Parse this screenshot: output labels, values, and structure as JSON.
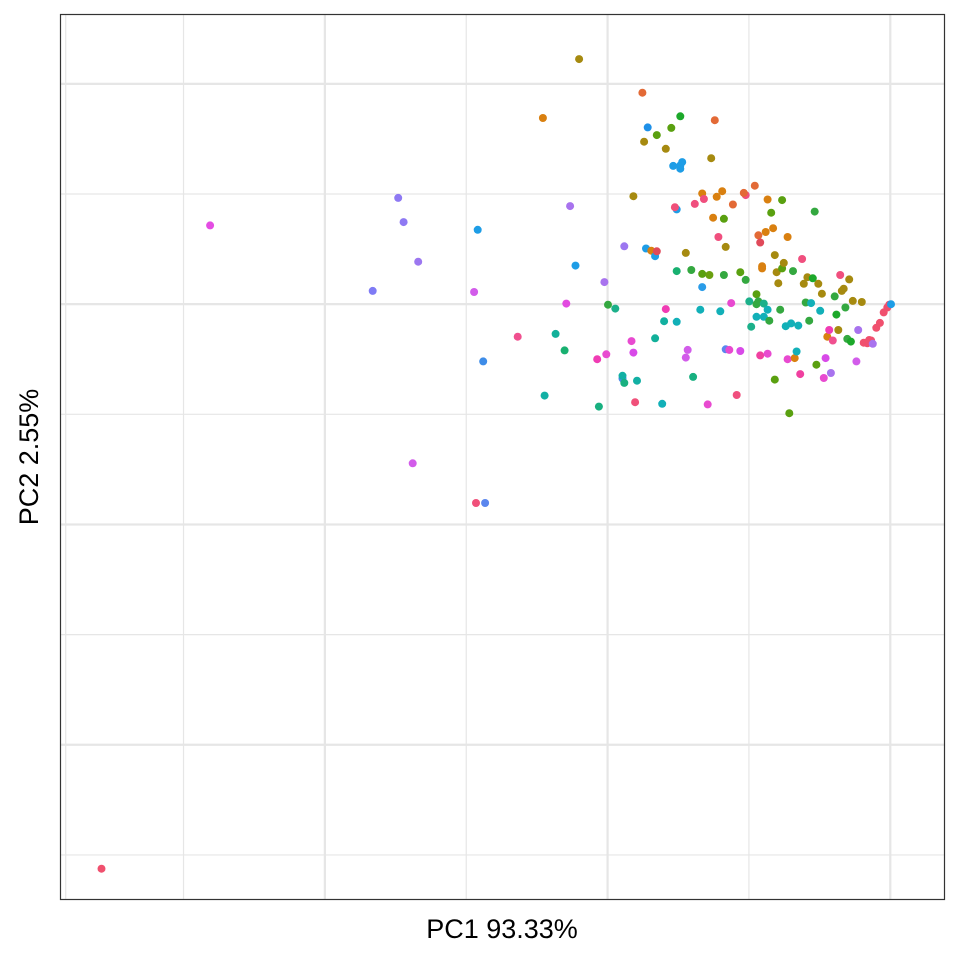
{
  "chart_data": {
    "type": "scatter",
    "title": "",
    "xlabel": "PC1 93.33%",
    "ylabel": "PC2 2.55%",
    "xlim": [
      -0.44,
      0.0285
    ],
    "ylim": [
      -1.08,
      0.525
    ],
    "x_gridlines_major": [
      -0.3,
      -0.15,
      0.0
    ],
    "x_gridlines_minor": [
      -0.375,
      -0.225,
      -0.075
    ],
    "x_gridlines_outer": [
      -0.4375
    ],
    "y_gridlines_major": [
      0.4,
      0.0,
      -0.4,
      -0.8
    ],
    "y_gridlines_minor": [
      0.2,
      -0.2,
      -0.6,
      -1.0
    ],
    "grid": true,
    "legend": "none",
    "point_radius_note": "small filled circles",
    "points": [
      {
        "x": -0.4185,
        "y": -1.025,
        "color": "#F0506E"
      },
      {
        "x": -0.3609,
        "y": 0.143,
        "color": "#E44DE3"
      },
      {
        "x": -0.2746,
        "y": 0.024,
        "color": "#7F7BF5"
      },
      {
        "x": -0.2611,
        "y": 0.193,
        "color": "#8E79F3"
      },
      {
        "x": -0.2582,
        "y": 0.149,
        "color": "#8E79F3"
      },
      {
        "x": -0.2505,
        "y": 0.077,
        "color": "#9C77F0"
      },
      {
        "x": -0.2534,
        "y": -0.289,
        "color": "#D25CEA"
      },
      {
        "x": -0.2208,
        "y": 0.022,
        "color": "#D25CEA"
      },
      {
        "x": -0.2189,
        "y": 0.135,
        "color": "#1E9DE6"
      },
      {
        "x": -0.216,
        "y": -0.104,
        "color": "#3D8CE8"
      },
      {
        "x": -0.2198,
        "y": -0.361,
        "color": "#F0507A"
      },
      {
        "x": -0.215,
        "y": -0.361,
        "color": "#5A86EE"
      },
      {
        "x": -0.1977,
        "y": -0.059,
        "color": "#F0508F"
      },
      {
        "x": -0.1843,
        "y": 0.338,
        "color": "#D98010"
      },
      {
        "x": -0.1834,
        "y": -0.166,
        "color": "#12B0A4"
      },
      {
        "x": -0.1776,
        "y": -0.054,
        "color": "#12B09A"
      },
      {
        "x": -0.1728,
        "y": -0.084,
        "color": "#18B070"
      },
      {
        "x": -0.1719,
        "y": 0.001,
        "color": "#E24AE0"
      },
      {
        "x": -0.1699,
        "y": 0.178,
        "color": "#A873EE"
      },
      {
        "x": -0.167,
        "y": 0.07,
        "color": "#1E9DE6"
      },
      {
        "x": -0.1651,
        "y": 0.445,
        "color": "#A68A10"
      },
      {
        "x": -0.1555,
        "y": -0.1,
        "color": "#F03CB4"
      },
      {
        "x": -0.1546,
        "y": -0.186,
        "color": "#18B080"
      },
      {
        "x": -0.1517,
        "y": 0.04,
        "color": "#A873EE"
      },
      {
        "x": -0.1507,
        "y": -0.091,
        "color": "#E84AD0"
      },
      {
        "x": -0.1498,
        "y": -0.001,
        "color": "#34A840"
      },
      {
        "x": -0.1459,
        "y": -0.008,
        "color": "#1CB08A"
      },
      {
        "x": -0.1421,
        "y": -0.135,
        "color": "#4787EA"
      },
      {
        "x": -0.1421,
        "y": -0.13,
        "color": "#12B0A4"
      },
      {
        "x": -0.1411,
        "y": -0.143,
        "color": "#18B080"
      },
      {
        "x": -0.1411,
        "y": 0.105,
        "color": "#9C77F0"
      },
      {
        "x": -0.1373,
        "y": -0.067,
        "color": "#E84AD0"
      },
      {
        "x": -0.1363,
        "y": -0.088,
        "color": "#D84AE8"
      },
      {
        "x": -0.1354,
        "y": -0.178,
        "color": "#F0507A"
      },
      {
        "x": -0.1344,
        "y": -0.139,
        "color": "#12B0A4"
      },
      {
        "x": -0.1363,
        "y": 0.196,
        "color": "#A68A10"
      },
      {
        "x": -0.1315,
        "y": 0.384,
        "color": "#E36A36"
      },
      {
        "x": -0.1296,
        "y": 0.101,
        "color": "#1E9DE6"
      },
      {
        "x": -0.1306,
        "y": 0.295,
        "color": "#A68A10"
      },
      {
        "x": -0.1287,
        "y": 0.321,
        "color": "#1E90E8"
      },
      {
        "x": -0.1268,
        "y": 0.097,
        "color": "#D98010"
      },
      {
        "x": -0.1248,
        "y": 0.087,
        "color": "#1E9DE6"
      },
      {
        "x": -0.1239,
        "y": 0.096,
        "color": "#E04A5A"
      },
      {
        "x": -0.1239,
        "y": 0.307,
        "color": "#5AA010"
      },
      {
        "x": -0.1248,
        "y": -0.062,
        "color": "#12B09A"
      },
      {
        "x": -0.121,
        "y": -0.181,
        "color": "#12B0B8"
      },
      {
        "x": -0.12,
        "y": -0.031,
        "color": "#12B0A0"
      },
      {
        "x": -0.1191,
        "y": -0.009,
        "color": "#F03CB4"
      },
      {
        "x": -0.1191,
        "y": 0.282,
        "color": "#A68A10"
      },
      {
        "x": -0.1162,
        "y": 0.32,
        "color": "#5AA010"
      },
      {
        "x": -0.1152,
        "y": 0.251,
        "color": "#1E9DE6"
      },
      {
        "x": -0.1133,
        "y": 0.172,
        "color": "#1E9DE6"
      },
      {
        "x": -0.1143,
        "y": 0.176,
        "color": "#F0507A"
      },
      {
        "x": -0.1133,
        "y": 0.06,
        "color": "#18B070"
      },
      {
        "x": -0.1133,
        "y": -0.032,
        "color": "#12B0B8"
      },
      {
        "x": -0.1114,
        "y": 0.252,
        "color": "#1E9DE6"
      },
      {
        "x": -0.1114,
        "y": 0.246,
        "color": "#1E9DE6"
      },
      {
        "x": -0.1104,
        "y": 0.258,
        "color": "#1E9DE6"
      },
      {
        "x": -0.1114,
        "y": 0.341,
        "color": "#1CA82A"
      },
      {
        "x": -0.1085,
        "y": 0.093,
        "color": "#A68A10"
      },
      {
        "x": -0.1085,
        "y": -0.097,
        "color": "#D25CEA"
      },
      {
        "x": -0.1075,
        "y": -0.083,
        "color": "#D25CEA"
      },
      {
        "x": -0.1056,
        "y": 0.062,
        "color": "#34A840"
      },
      {
        "x": -0.1046,
        "y": -0.132,
        "color": "#18B080"
      },
      {
        "x": -0.1037,
        "y": 0.182,
        "color": "#F04F7E"
      },
      {
        "x": -0.1008,
        "y": -0.01,
        "color": "#12B0B8"
      },
      {
        "x": -0.0998,
        "y": 0.031,
        "color": "#2A9CE8"
      },
      {
        "x": -0.0998,
        "y": 0.055,
        "color": "#5AA010"
      },
      {
        "x": -0.0998,
        "y": 0.201,
        "color": "#D98010"
      },
      {
        "x": -0.0989,
        "y": 0.191,
        "color": "#F04F7E"
      },
      {
        "x": -0.0969,
        "y": -0.182,
        "color": "#E84AD0"
      },
      {
        "x": -0.096,
        "y": 0.053,
        "color": "#6AA010"
      },
      {
        "x": -0.095,
        "y": 0.265,
        "color": "#A68A10"
      },
      {
        "x": -0.094,
        "y": 0.157,
        "color": "#D98010"
      },
      {
        "x": -0.0931,
        "y": 0.334,
        "color": "#E36A36"
      },
      {
        "x": -0.0912,
        "y": 0.122,
        "color": "#F04F7E"
      },
      {
        "x": -0.0921,
        "y": 0.195,
        "color": "#D98010"
      },
      {
        "x": -0.0902,
        "y": -0.013,
        "color": "#12B0B8"
      },
      {
        "x": -0.0892,
        "y": 0.205,
        "color": "#D98010"
      },
      {
        "x": -0.0883,
        "y": 0.053,
        "color": "#34A840"
      },
      {
        "x": -0.0883,
        "y": 0.155,
        "color": "#5AA010"
      },
      {
        "x": -0.0873,
        "y": 0.104,
        "color": "#A68A10"
      },
      {
        "x": -0.0873,
        "y": -0.082,
        "color": "#5A86EE"
      },
      {
        "x": -0.0854,
        "y": -0.083,
        "color": "#E84AD0"
      },
      {
        "x": -0.0844,
        "y": 0.002,
        "color": "#E84AD0"
      },
      {
        "x": -0.0835,
        "y": 0.181,
        "color": "#E36A36"
      },
      {
        "x": -0.0815,
        "y": -0.165,
        "color": "#F04F7E"
      },
      {
        "x": -0.0796,
        "y": -0.085,
        "color": "#D84AE8"
      },
      {
        "x": -0.0796,
        "y": 0.058,
        "color": "#5AA010"
      },
      {
        "x": -0.0767,
        "y": 0.198,
        "color": "#F04F7E"
      },
      {
        "x": -0.0777,
        "y": 0.202,
        "color": "#E36A36"
      },
      {
        "x": -0.0767,
        "y": 0.044,
        "color": "#34A840"
      },
      {
        "x": -0.0748,
        "y": 0.005,
        "color": "#1CB08A"
      },
      {
        "x": -0.0738,
        "y": -0.041,
        "color": "#1CB08A"
      },
      {
        "x": -0.0719,
        "y": 0.215,
        "color": "#E36A36"
      },
      {
        "x": -0.071,
        "y": 0.018,
        "color": "#5AA010"
      },
      {
        "x": -0.071,
        "y": 0.0,
        "color": "#34A840"
      },
      {
        "x": -0.07,
        "y": 0.005,
        "color": "#34A840"
      },
      {
        "x": -0.071,
        "y": -0.023,
        "color": "#12B0B8"
      },
      {
        "x": -0.07,
        "y": 0.125,
        "color": "#E36A36"
      },
      {
        "x": -0.069,
        "y": 0.112,
        "color": "#E04A5A"
      },
      {
        "x": -0.069,
        "y": -0.093,
        "color": "#F040A0"
      },
      {
        "x": -0.068,
        "y": 0.069,
        "color": "#D98010"
      },
      {
        "x": -0.0671,
        "y": -0.023,
        "color": "#12B0B8"
      },
      {
        "x": -0.068,
        "y": 0.065,
        "color": "#D98010"
      },
      {
        "x": -0.0671,
        "y": 0.001,
        "color": "#1CB08A"
      },
      {
        "x": -0.0661,
        "y": 0.131,
        "color": "#D98010"
      },
      {
        "x": -0.0651,
        "y": -0.01,
        "color": "#12B0B8"
      },
      {
        "x": -0.0651,
        "y": 0.19,
        "color": "#D98010"
      },
      {
        "x": -0.0651,
        "y": -0.09,
        "color": "#E84AD0"
      },
      {
        "x": -0.0642,
        "y": -0.03,
        "color": "#34A840"
      },
      {
        "x": -0.0632,
        "y": 0.166,
        "color": "#5AA010"
      },
      {
        "x": -0.0622,
        "y": 0.138,
        "color": "#D98010"
      },
      {
        "x": -0.0613,
        "y": -0.137,
        "color": "#5AA010"
      },
      {
        "x": -0.0613,
        "y": 0.089,
        "color": "#A68A10"
      },
      {
        "x": -0.0603,
        "y": 0.058,
        "color": "#A68A10"
      },
      {
        "x": -0.0594,
        "y": 0.038,
        "color": "#A68A10"
      },
      {
        "x": -0.0584,
        "y": -0.01,
        "color": "#34A840"
      },
      {
        "x": -0.0574,
        "y": 0.189,
        "color": "#5AA010"
      },
      {
        "x": -0.0574,
        "y": 0.065,
        "color": "#5AA010"
      },
      {
        "x": -0.0565,
        "y": 0.075,
        "color": "#A68A10"
      },
      {
        "x": -0.0555,
        "y": -0.04,
        "color": "#12B0B8"
      },
      {
        "x": -0.0545,
        "y": 0.122,
        "color": "#D98010"
      },
      {
        "x": -0.0545,
        "y": -0.1,
        "color": "#E84AD0"
      },
      {
        "x": -0.0536,
        "y": -0.198,
        "color": "#5AA010"
      },
      {
        "x": -0.0526,
        "y": -0.035,
        "color": "#12B0B8"
      },
      {
        "x": -0.0516,
        "y": 0.06,
        "color": "#34A840"
      },
      {
        "x": -0.0507,
        "y": -0.098,
        "color": "#D98010"
      },
      {
        "x": -0.0497,
        "y": -0.086,
        "color": "#12B0B8"
      },
      {
        "x": -0.0488,
        "y": -0.039,
        "color": "#12B0B8"
      },
      {
        "x": -0.0478,
        "y": -0.127,
        "color": "#F040A0"
      },
      {
        "x": -0.0468,
        "y": 0.082,
        "color": "#F04F7E"
      },
      {
        "x": -0.0459,
        "y": 0.037,
        "color": "#A68A10"
      },
      {
        "x": -0.0449,
        "y": 0.003,
        "color": "#34A840"
      },
      {
        "x": -0.044,
        "y": 0.049,
        "color": "#A68A10"
      },
      {
        "x": -0.043,
        "y": -0.03,
        "color": "#34A840"
      },
      {
        "x": -0.042,
        "y": 0.002,
        "color": "#12B0B8"
      },
      {
        "x": -0.0411,
        "y": 0.047,
        "color": "#1CA82A"
      },
      {
        "x": -0.0401,
        "y": 0.168,
        "color": "#34A840"
      },
      {
        "x": -0.0392,
        "y": -0.11,
        "color": "#5AA010"
      },
      {
        "x": -0.0382,
        "y": 0.037,
        "color": "#A68A10"
      },
      {
        "x": -0.0372,
        "y": -0.012,
        "color": "#12B0B8"
      },
      {
        "x": -0.0363,
        "y": 0.019,
        "color": "#A68A10"
      },
      {
        "x": -0.0353,
        "y": -0.134,
        "color": "#E84AD0"
      },
      {
        "x": -0.0343,
        "y": -0.098,
        "color": "#D84AE8"
      },
      {
        "x": -0.0334,
        "y": -0.059,
        "color": "#D98010"
      },
      {
        "x": -0.0324,
        "y": -0.047,
        "color": "#F03CB4"
      },
      {
        "x": -0.0315,
        "y": -0.125,
        "color": "#A873EE"
      },
      {
        "x": -0.0305,
        "y": -0.066,
        "color": "#F0508F"
      },
      {
        "x": -0.0295,
        "y": 0.014,
        "color": "#34A840"
      },
      {
        "x": -0.0286,
        "y": -0.019,
        "color": "#1CA82A"
      },
      {
        "x": -0.0276,
        "y": -0.047,
        "color": "#A68A10"
      },
      {
        "x": -0.0266,
        "y": 0.053,
        "color": "#F04F7E"
      },
      {
        "x": -0.0257,
        "y": 0.024,
        "color": "#A68A10"
      },
      {
        "x": -0.0247,
        "y": 0.028,
        "color": "#A68A10"
      },
      {
        "x": -0.0238,
        "y": -0.006,
        "color": "#34A840"
      },
      {
        "x": -0.0228,
        "y": -0.063,
        "color": "#34A840"
      },
      {
        "x": -0.0218,
        "y": 0.045,
        "color": "#A68A10"
      },
      {
        "x": -0.0209,
        "y": -0.068,
        "color": "#1CA82A"
      },
      {
        "x": -0.0199,
        "y": 0.006,
        "color": "#A68A10"
      },
      {
        "x": -0.018,
        "y": -0.104,
        "color": "#D25CEA"
      },
      {
        "x": -0.017,
        "y": -0.047,
        "color": "#A873EE"
      },
      {
        "x": -0.0151,
        "y": 0.004,
        "color": "#A68A10"
      },
      {
        "x": -0.0141,
        "y": -0.07,
        "color": "#F0506E"
      },
      {
        "x": -0.0122,
        "y": -0.071,
        "color": "#F0506E"
      },
      {
        "x": -0.0112,
        "y": -0.065,
        "color": "#F0506E"
      },
      {
        "x": -0.0102,
        "y": -0.066,
        "color": "#F0506E"
      },
      {
        "x": -0.0093,
        "y": -0.072,
        "color": "#A873EE"
      },
      {
        "x": -0.0074,
        "y": -0.043,
        "color": "#F0506E"
      },
      {
        "x": -0.0055,
        "y": -0.034,
        "color": "#F0506E"
      },
      {
        "x": -0.0035,
        "y": -0.015,
        "color": "#F0506E"
      },
      {
        "x": -0.0016,
        "y": -0.006,
        "color": "#F0506E"
      },
      {
        "x": -0.0006,
        "y": -0.001,
        "color": "#F0506E"
      },
      {
        "x": 0.0004,
        "y": 0.0,
        "color": "#1E9DE6"
      }
    ]
  }
}
